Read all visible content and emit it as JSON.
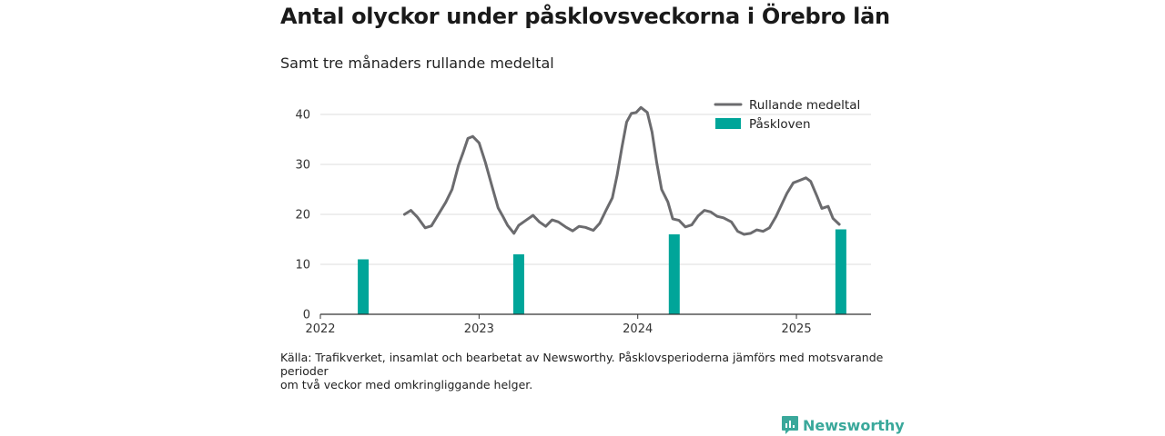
{
  "title": "Antal olyckor under påsklovsveckorna i Örebro län",
  "subtitle": "Samt tre månaders rullande medeltal",
  "source_lines": [
    "Källa: Trafikverket, insamlat och bearbetat av Newsworthy. Påsklovsperioderna jämförs med motsvarande",
    "perioder",
    "om två veckor med omkringliggande helger."
  ],
  "logo_text": "Newsworthy",
  "colors": {
    "line": "#6b6b6e",
    "bar": "#00a599",
    "grid": "#dcdcdc",
    "logo": "#3aa89b"
  },
  "chart_data": {
    "type": "bar+line",
    "xlim": [
      2022.0,
      2025.47
    ],
    "ylim": [
      0,
      42
    ],
    "x_ticks": [
      2022,
      2023,
      2024,
      2025
    ],
    "x_tick_labels": [
      "2022",
      "2023",
      "2024",
      "2025"
    ],
    "y_ticks": [
      0,
      10,
      20,
      30,
      40
    ],
    "y_tick_labels": [
      "0",
      "10",
      "20",
      "30",
      "40"
    ],
    "grid": "horizontal",
    "legend_position": "top-right",
    "series": [
      {
        "name": "Rullande medeltal",
        "type": "line",
        "points": [
          [
            2022.53,
            20.0
          ],
          [
            2022.57,
            20.8
          ],
          [
            2022.61,
            19.5
          ],
          [
            2022.66,
            17.3
          ],
          [
            2022.7,
            17.7
          ],
          [
            2022.74,
            19.8
          ],
          [
            2022.79,
            22.4
          ],
          [
            2022.83,
            25.0
          ],
          [
            2022.87,
            29.8
          ],
          [
            2022.9,
            32.4
          ],
          [
            2022.93,
            35.2
          ],
          [
            2022.96,
            35.6
          ],
          [
            2023.0,
            34.3
          ],
          [
            2023.04,
            30.4
          ],
          [
            2023.08,
            25.8
          ],
          [
            2023.12,
            21.3
          ],
          [
            2023.15,
            19.6
          ],
          [
            2023.18,
            17.8
          ],
          [
            2023.22,
            16.2
          ],
          [
            2023.25,
            17.8
          ],
          [
            2023.29,
            18.7
          ],
          [
            2023.34,
            19.8
          ],
          [
            2023.38,
            18.5
          ],
          [
            2023.42,
            17.6
          ],
          [
            2023.46,
            18.9
          ],
          [
            2023.5,
            18.5
          ],
          [
            2023.55,
            17.4
          ],
          [
            2023.59,
            16.7
          ],
          [
            2023.63,
            17.6
          ],
          [
            2023.67,
            17.4
          ],
          [
            2023.72,
            16.8
          ],
          [
            2023.76,
            18.2
          ],
          [
            2023.8,
            20.8
          ],
          [
            2023.84,
            23.3
          ],
          [
            2023.87,
            27.8
          ],
          [
            2023.9,
            33.4
          ],
          [
            2023.93,
            38.5
          ],
          [
            2023.96,
            40.2
          ],
          [
            2023.99,
            40.4
          ],
          [
            2024.02,
            41.4
          ],
          [
            2024.06,
            40.4
          ],
          [
            2024.09,
            36.5
          ],
          [
            2024.12,
            30.3
          ],
          [
            2024.15,
            25.0
          ],
          [
            2024.19,
            22.5
          ],
          [
            2024.22,
            19.1
          ],
          [
            2024.26,
            18.8
          ],
          [
            2024.3,
            17.5
          ],
          [
            2024.34,
            17.9
          ],
          [
            2024.38,
            19.7
          ],
          [
            2024.42,
            20.8
          ],
          [
            2024.46,
            20.5
          ],
          [
            2024.5,
            19.6
          ],
          [
            2024.54,
            19.3
          ],
          [
            2024.59,
            18.5
          ],
          [
            2024.63,
            16.6
          ],
          [
            2024.67,
            16.0
          ],
          [
            2024.71,
            16.2
          ],
          [
            2024.75,
            16.9
          ],
          [
            2024.79,
            16.6
          ],
          [
            2024.83,
            17.3
          ],
          [
            2024.87,
            19.5
          ],
          [
            2024.91,
            22.2
          ],
          [
            2024.94,
            24.2
          ],
          [
            2024.98,
            26.3
          ],
          [
            2025.02,
            26.8
          ],
          [
            2025.06,
            27.3
          ],
          [
            2025.09,
            26.6
          ],
          [
            2025.13,
            23.6
          ],
          [
            2025.16,
            21.2
          ],
          [
            2025.2,
            21.6
          ],
          [
            2025.23,
            19.2
          ],
          [
            2025.27,
            18.0
          ]
        ]
      },
      {
        "name": "Påskloven",
        "type": "bar",
        "x": [
          2022.27,
          2023.25,
          2024.23,
          2025.28
        ],
        "values": [
          11,
          12,
          16,
          17
        ]
      }
    ]
  }
}
